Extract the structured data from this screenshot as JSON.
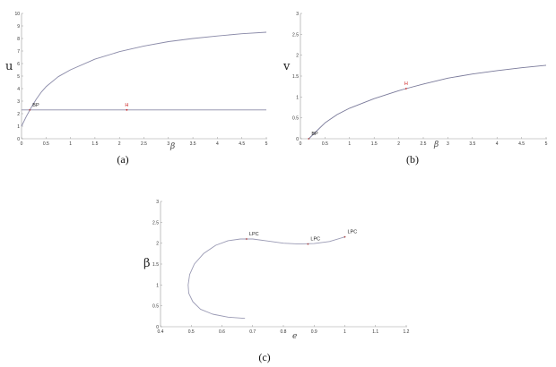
{
  "chart_data": [
    {
      "type": "line",
      "caption": "(a)",
      "xlabel": "β",
      "ylabel": "u",
      "xlim": [
        0,
        5
      ],
      "ylim": [
        0,
        10
      ],
      "xticks": [
        "0",
        "0.5",
        "1",
        "1.5",
        "2",
        "2.5",
        "3",
        "3.5",
        "4",
        "4.5",
        "5"
      ],
      "yticks": [
        "0",
        "1",
        "2",
        "3",
        "4",
        "5",
        "6",
        "7",
        "8",
        "9",
        "10"
      ],
      "grid": false,
      "series": [
        {
          "color": "#8a8aa8",
          "points": [
            [
              0,
              1
            ],
            [
              0.1,
              1.8
            ],
            [
              0.2,
              2.5
            ],
            [
              0.3,
              3.15
            ],
            [
              0.4,
              3.7
            ],
            [
              0.5,
              4.15
            ],
            [
              0.75,
              4.95
            ],
            [
              1,
              5.5
            ],
            [
              1.5,
              6.35
            ],
            [
              2,
              6.95
            ],
            [
              2.5,
              7.4
            ],
            [
              3,
              7.75
            ],
            [
              3.5,
              8.0
            ],
            [
              4,
              8.2
            ],
            [
              4.5,
              8.38
            ],
            [
              5,
              8.5
            ]
          ]
        },
        {
          "color": "#8a8aa8",
          "points": [
            [
              0,
              2.3
            ],
            [
              5,
              2.3
            ]
          ]
        }
      ],
      "annotations": [
        {
          "label": "BP",
          "x": 0.17,
          "y": 2.3,
          "color": "#222222"
        },
        {
          "label": "H",
          "x": 2.15,
          "y": 2.3,
          "color": "#cc2222"
        }
      ]
    },
    {
      "type": "line",
      "caption": "(b)",
      "xlabel": "β",
      "ylabel": "v",
      "xlim": [
        0,
        5
      ],
      "ylim": [
        0,
        3
      ],
      "xticks": [
        "0",
        "0.5",
        "1",
        "1.5",
        "2",
        "2.5",
        "3",
        "3.5",
        "4",
        "4.5",
        "5"
      ],
      "yticks": [
        "0",
        "0.5",
        "1",
        "1.5",
        "2",
        "2.5",
        "3"
      ],
      "grid": false,
      "series": [
        {
          "color": "#7a7a9a",
          "points": [
            [
              0.17,
              0
            ],
            [
              0.3,
              0.15
            ],
            [
              0.5,
              0.38
            ],
            [
              0.75,
              0.58
            ],
            [
              1,
              0.73
            ],
            [
              1.5,
              0.96
            ],
            [
              2,
              1.15
            ],
            [
              2.15,
              1.2
            ],
            [
              2.5,
              1.31
            ],
            [
              3,
              1.45
            ],
            [
              3.5,
              1.55
            ],
            [
              4,
              1.63
            ],
            [
              4.5,
              1.7
            ],
            [
              5,
              1.76
            ]
          ]
        }
      ],
      "annotations": [
        {
          "label": "BP",
          "x": 0.17,
          "y": 0,
          "color": "#222222"
        },
        {
          "label": "H",
          "x": 2.15,
          "y": 1.2,
          "color": "#cc2222"
        }
      ]
    },
    {
      "type": "line",
      "caption": "(c)",
      "xlabel": "e",
      "ylabel": "β",
      "xlim": [
        0.4,
        1.2
      ],
      "ylim": [
        0,
        3
      ],
      "xticks": [
        "0.4",
        "0.5",
        "0.6",
        "0.7",
        "0.8",
        "0.9",
        "1",
        "1.1",
        "1.2"
      ],
      "yticks": [
        "0",
        "0.5",
        "1",
        "1.5",
        "2",
        "2.5",
        "3"
      ],
      "grid": false,
      "series": [
        {
          "color": "#9a9ab4",
          "points": [
            [
              0.675,
              0.2
            ],
            [
              0.62,
              0.23
            ],
            [
              0.57,
              0.3
            ],
            [
              0.53,
              0.42
            ],
            [
              0.505,
              0.6
            ],
            [
              0.492,
              0.8
            ],
            [
              0.49,
              1.0
            ],
            [
              0.495,
              1.25
            ],
            [
              0.51,
              1.5
            ],
            [
              0.54,
              1.75
            ],
            [
              0.58,
              1.95
            ],
            [
              0.62,
              2.06
            ],
            [
              0.66,
              2.1
            ],
            [
              0.7,
              2.1
            ],
            [
              0.75,
              2.05
            ],
            [
              0.8,
              2.0
            ],
            [
              0.85,
              1.98
            ],
            [
              0.9,
              1.99
            ],
            [
              0.95,
              2.04
            ],
            [
              1.0,
              2.15
            ]
          ]
        }
      ],
      "annotations": [
        {
          "label": "LPC",
          "x": 0.68,
          "y": 2.1,
          "color": "#222222"
        },
        {
          "label": "LPC",
          "x": 0.88,
          "y": 1.98,
          "color": "#222222"
        },
        {
          "label": "LPC",
          "x": 1.0,
          "y": 2.15,
          "color": "#222222"
        }
      ]
    }
  ]
}
